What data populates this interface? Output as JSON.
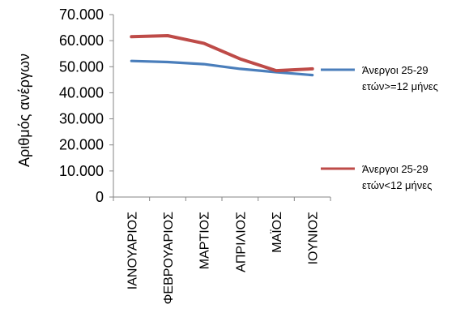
{
  "chart_data": {
    "type": "line",
    "title": "",
    "xlabel": "",
    "ylabel": "Αριθμός ανέργων",
    "ylim": [
      0,
      70000
    ],
    "yticks": [
      "0",
      "10.000",
      "20.000",
      "30.000",
      "40.000",
      "50.000",
      "60.000",
      "70.000"
    ],
    "categories": [
      "ΙΑΝΟΥΑΡΙΟΣ",
      "ΦΕΒΡΟΥΑΡΙΟΣ",
      "ΜΑΡΤΙΟΣ",
      "ΑΠΡΙΛΙΟΣ",
      "ΜΑΪΟΣ",
      "ΙΟΥΝΙΟΣ"
    ],
    "grid": false,
    "legend_position": "right",
    "series": [
      {
        "name_line1": "Άνεργοι 25-29",
        "name_line2": "ετών>=12 μήνες",
        "color": "#4a7ebb",
        "values": [
          52200,
          51800,
          51000,
          49200,
          47900,
          46800
        ]
      },
      {
        "name_line1": "Άνεργοι 25-29",
        "name_line2": "ετών<12 μήνες",
        "color": "#be4b48",
        "values": [
          61500,
          61900,
          59000,
          53000,
          48500,
          49200
        ]
      }
    ]
  }
}
